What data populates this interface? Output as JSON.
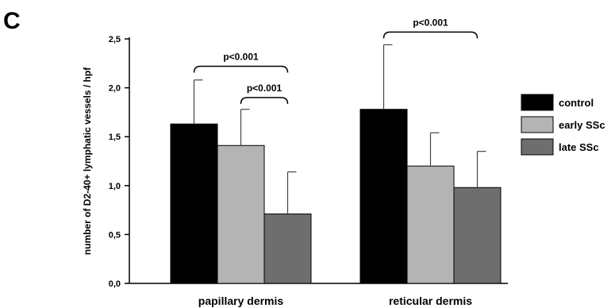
{
  "panel_label": "C",
  "chart_data": {
    "type": "bar",
    "ylabel": "number of D2-40+ lymphatic vessels / hpf",
    "xlabel": "",
    "ylim": [
      0,
      2.5
    ],
    "yticks": [
      0,
      0.5,
      1.0,
      1.5,
      2.0,
      2.5
    ],
    "ytick_labels": [
      "0,0",
      "0,5",
      "1,0",
      "1,5",
      "2,0",
      "2,5"
    ],
    "categories": [
      "papillary dermis",
      "reticular dermis"
    ],
    "series": [
      {
        "name": "control",
        "color": "#000000",
        "values": [
          1.63,
          1.78
        ],
        "errors": [
          0.45,
          0.66
        ]
      },
      {
        "name": "early SSc",
        "color": "#b4b4b4",
        "values": [
          1.41,
          1.2
        ],
        "errors": [
          0.37,
          0.34
        ]
      },
      {
        "name": "late SSc",
        "color": "#6e6e6e",
        "values": [
          0.71,
          0.98
        ],
        "errors": [
          0.43,
          0.37
        ]
      }
    ],
    "legend_position": "right",
    "grid": false,
    "annotations": [
      {
        "text": "p<0.001",
        "category": 0,
        "from_series": 0,
        "to_series": 2,
        "y": 2.22
      },
      {
        "text": "p<0.001",
        "category": 0,
        "from_series": 1,
        "to_series": 2,
        "y": 1.9
      },
      {
        "text": "p<0.001",
        "category": 1,
        "from_series": 0,
        "to_series": 2,
        "y": 2.57
      }
    ]
  }
}
